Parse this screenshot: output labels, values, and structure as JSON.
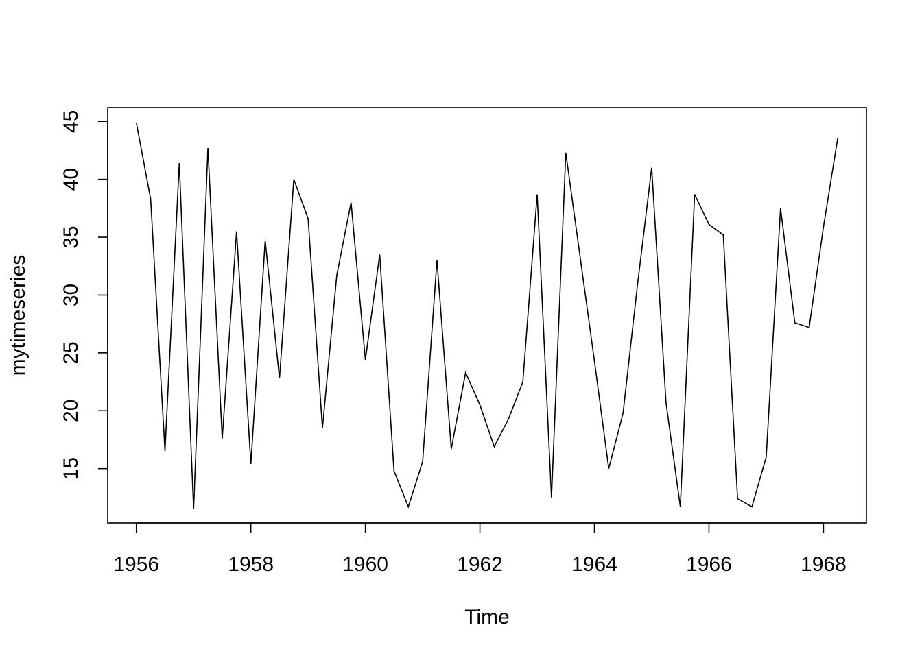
{
  "chart_data": {
    "type": "line",
    "title": "",
    "xlabel": "Time",
    "ylabel": "mytimeseries",
    "x_start": 1956.0,
    "frequency": 4,
    "xlim": [
      1955.5,
      1968.75
    ],
    "ylim": [
      10.3,
      46.2
    ],
    "x_ticks": [
      1956,
      1958,
      1960,
      1962,
      1964,
      1966,
      1968
    ],
    "y_ticks": [
      15,
      20,
      25,
      30,
      35,
      40,
      45
    ],
    "grid": false,
    "legend": "none",
    "line_color": "#000000",
    "series": [
      {
        "values": [
          44.9,
          38.3,
          16.5,
          41.4,
          11.5,
          42.7,
          17.6,
          35.5,
          15.4,
          34.7,
          22.8,
          40.0,
          36.6,
          18.5,
          31.7,
          38.0,
          24.4,
          33.5,
          14.8,
          11.7,
          15.6,
          33.0,
          16.7,
          23.3,
          20.5,
          16.9,
          19.3,
          22.5,
          38.7,
          12.5,
          42.3,
          33.3,
          24.3,
          15.0,
          19.8,
          30.8,
          41.0,
          20.7,
          11.7,
          38.7,
          36.1,
          35.2,
          12.4,
          11.7,
          16.0,
          37.5,
          27.6,
          27.2,
          35.9,
          43.6
        ]
      }
    ]
  }
}
